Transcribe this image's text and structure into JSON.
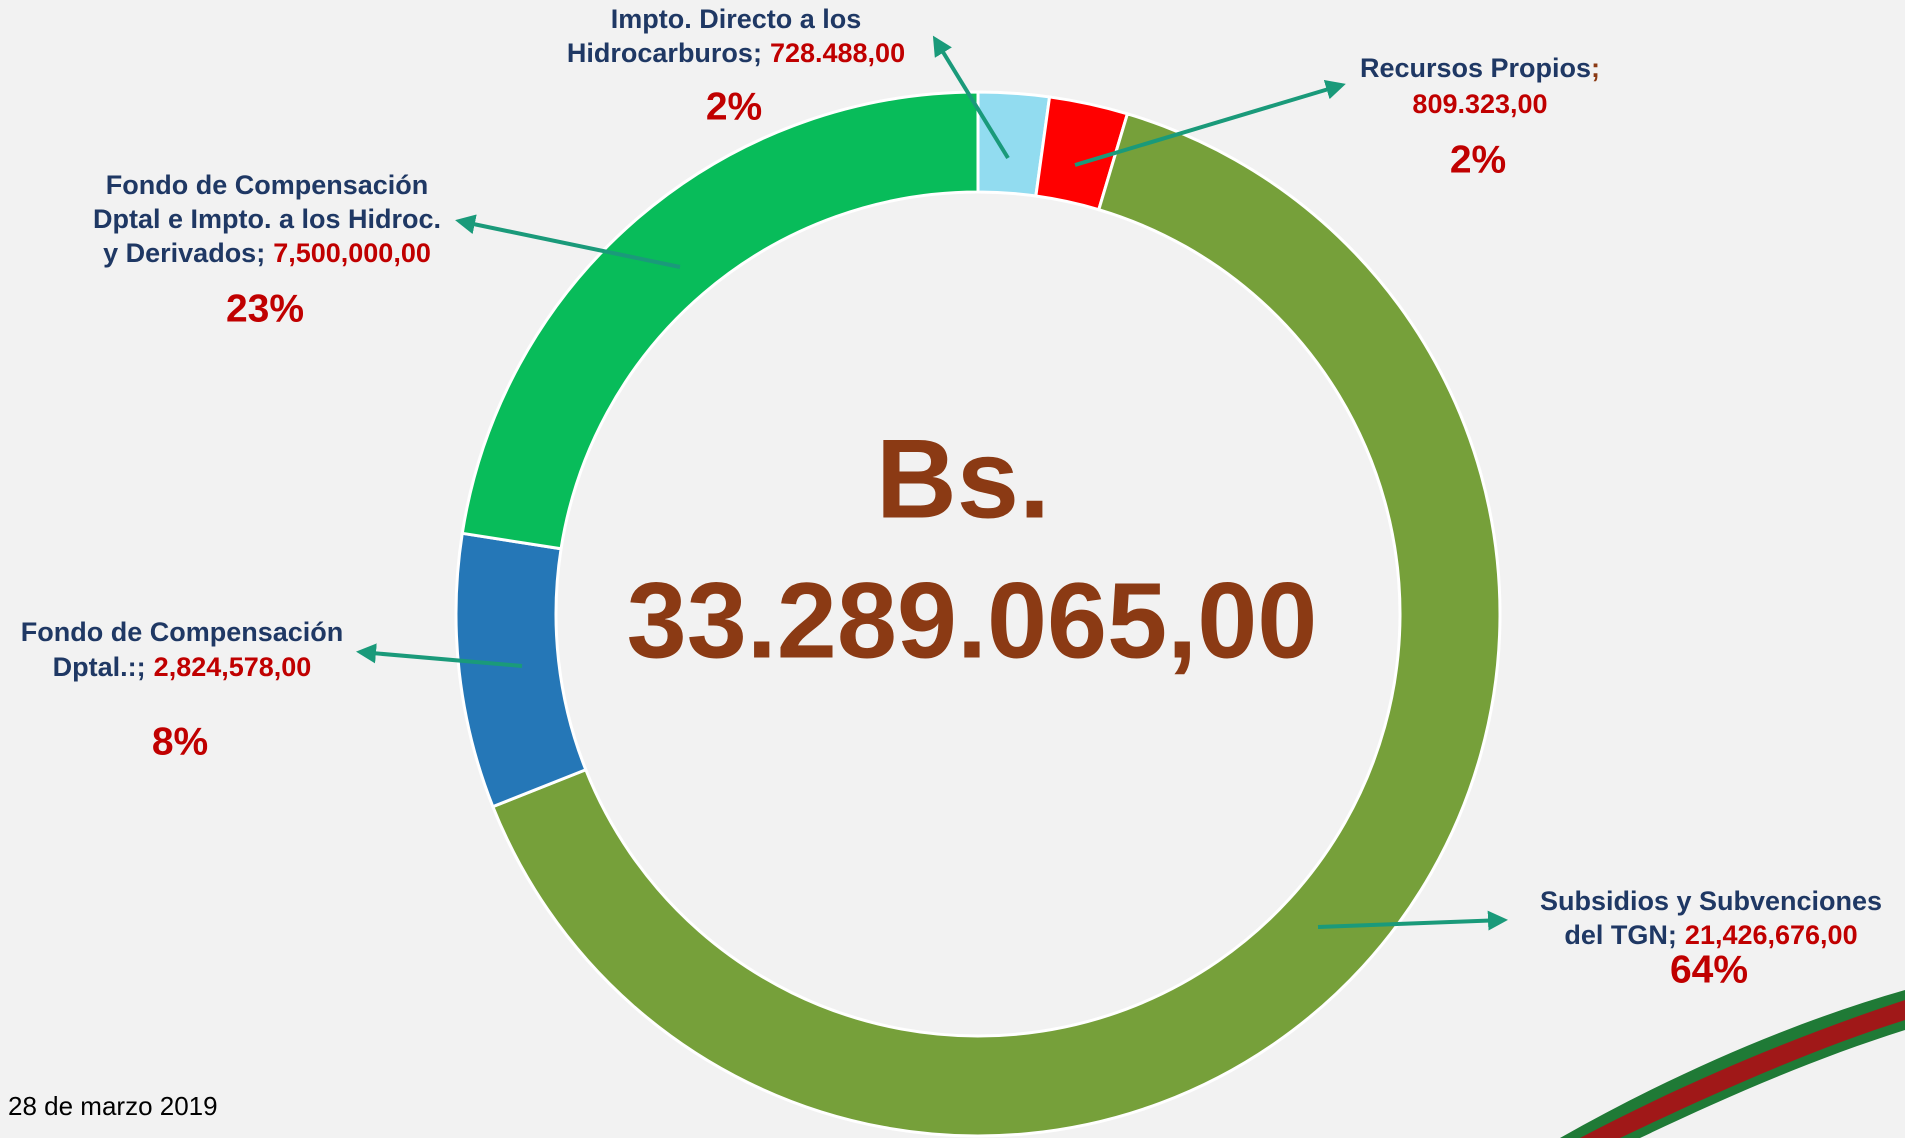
{
  "chart_data": {
    "type": "donut",
    "center_title": "Bs.",
    "center_value": "33.289.065,00",
    "separator": ";",
    "categories": [
      [
        "Impto. Directo a los",
        "Hidrocarburos"
      ],
      [
        "Recursos Propios"
      ],
      [
        "Subsidios y Subvenciones",
        "del TGN"
      ],
      [
        "Fondo de Compensación",
        "Dptal.:"
      ],
      [
        "Fondo de Compensación",
        "Dptal e Impto. a los Hidroc.",
        "y Derivados"
      ]
    ],
    "values": [
      728488,
      809323,
      21426676,
      2824578,
      7500000
    ],
    "value_labels": [
      "728.488,00",
      "809.323,00",
      "21,426,676,00",
      "2,824,578,00",
      "7,500,000,00"
    ],
    "percents": [
      2,
      2,
      64,
      8,
      23
    ],
    "percent_labels": [
      "2%",
      "2%",
      "64%",
      "8%",
      "23%"
    ],
    "colors": [
      "#92dcf0",
      "#ff0000",
      "#76a03a",
      "#2577b7",
      "#08bc5a"
    ],
    "footer": "28 de marzo 2019"
  }
}
